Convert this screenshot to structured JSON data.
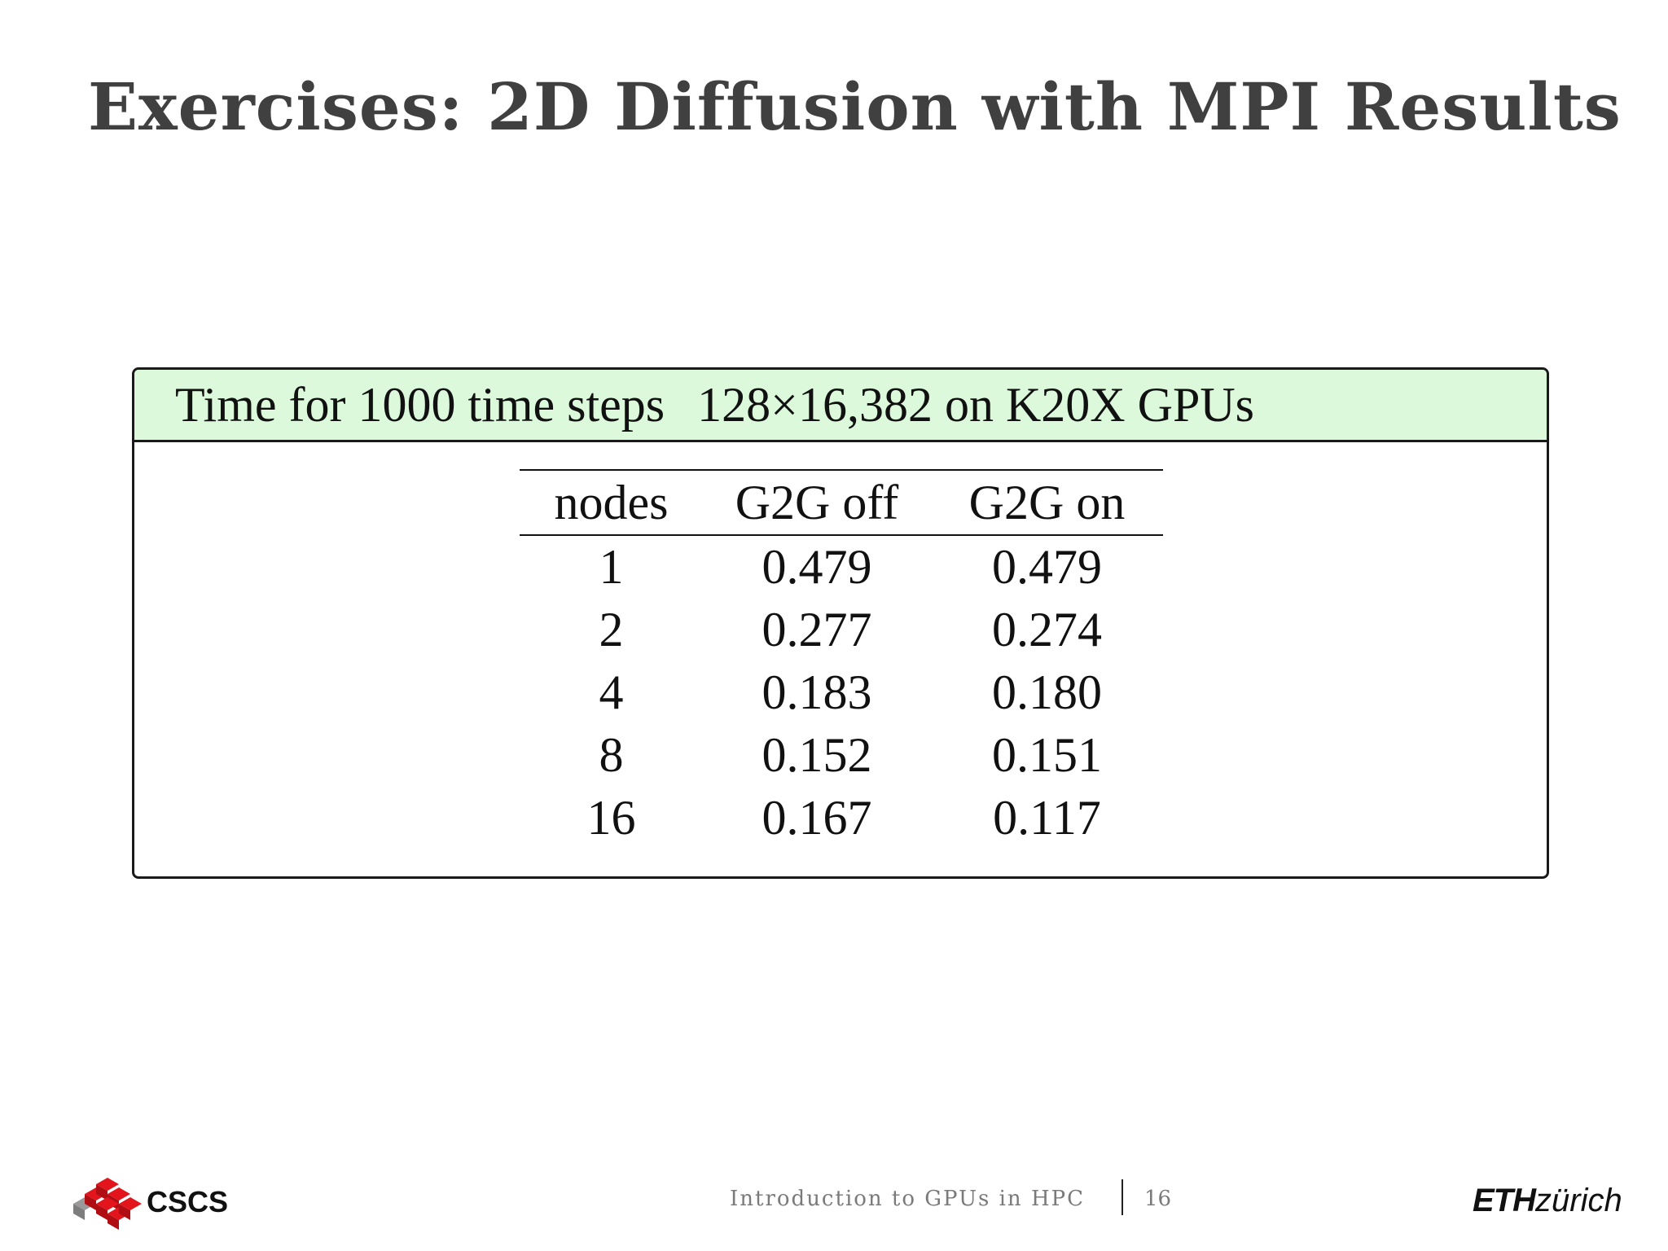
{
  "slide": {
    "title": "Exercises: 2D Diffusion with MPI Results"
  },
  "block": {
    "header_label": "Time for 1000 time steps",
    "header_dims": "128×16,382 on K20X GPUs"
  },
  "table": {
    "columns": [
      "nodes",
      "G2G off",
      "G2G on"
    ],
    "rows": [
      [
        "1",
        "0.479",
        "0.479"
      ],
      [
        "2",
        "0.277",
        "0.274"
      ],
      [
        "4",
        "0.183",
        "0.180"
      ],
      [
        "8",
        "0.152",
        "0.151"
      ],
      [
        "16",
        "0.167",
        "0.117"
      ]
    ]
  },
  "footer": {
    "left_logo_text": "CSCS",
    "center_text": "Introduction to GPUs in HPC",
    "page_number": "16",
    "right_logo_eth": "ETH",
    "right_logo_zurich": "zürich",
    "colors": {
      "cscs_red": "#e3141c",
      "cscs_gray": "#9a9a9a",
      "header_green": "#dcf9dc"
    }
  }
}
